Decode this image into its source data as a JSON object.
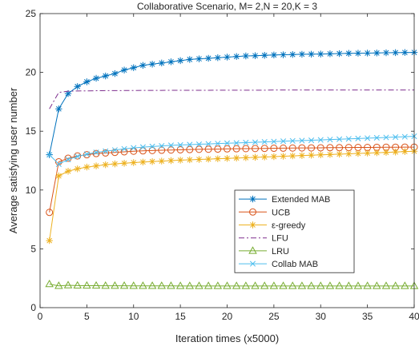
{
  "chart_data": {
    "type": "line",
    "title": "Collaborative Scenario, M= 2,N = 20,K = 3",
    "xlabel": "Iteration times (x5000)",
    "ylabel": "Average satisfying user number",
    "xlim": [
      0,
      40
    ],
    "ylim": [
      0,
      25
    ],
    "xticks": [
      0,
      5,
      10,
      15,
      20,
      25,
      30,
      35,
      40
    ],
    "yticks": [
      0,
      5,
      10,
      15,
      20,
      25
    ],
    "grid": false,
    "legend_position": "lower-right",
    "x": [
      1,
      2,
      3,
      4,
      5,
      6,
      7,
      8,
      9,
      10,
      11,
      12,
      13,
      14,
      15,
      16,
      17,
      18,
      19,
      20,
      21,
      22,
      23,
      24,
      25,
      26,
      27,
      28,
      29,
      30,
      31,
      32,
      33,
      34,
      35,
      36,
      37,
      38,
      39,
      40
    ],
    "series": [
      {
        "name": "Extended MAB",
        "color": "#0072BD",
        "marker": "star",
        "dash": "",
        "values": [
          13.0,
          16.9,
          18.2,
          18.8,
          19.2,
          19.5,
          19.7,
          19.9,
          20.2,
          20.4,
          20.6,
          20.7,
          20.8,
          20.9,
          21.0,
          21.1,
          21.15,
          21.2,
          21.25,
          21.3,
          21.35,
          21.4,
          21.42,
          21.45,
          21.48,
          21.5,
          21.52,
          21.54,
          21.55,
          21.56,
          21.58,
          21.6,
          21.62,
          21.63,
          21.64,
          21.65,
          21.67,
          21.68,
          21.69,
          21.7
        ]
      },
      {
        "name": "UCB",
        "color": "#D95319",
        "marker": "circle",
        "dash": "",
        "values": [
          8.1,
          12.4,
          12.7,
          12.9,
          13.0,
          13.1,
          13.15,
          13.2,
          13.25,
          13.3,
          13.33,
          13.36,
          13.38,
          13.4,
          13.42,
          13.44,
          13.46,
          13.47,
          13.48,
          13.5,
          13.51,
          13.52,
          13.53,
          13.54,
          13.55,
          13.56,
          13.57,
          13.58,
          13.58,
          13.59,
          13.6,
          13.6,
          13.61,
          13.62,
          13.62,
          13.63,
          13.64,
          13.64,
          13.65,
          13.65
        ]
      },
      {
        "name": "ε-greedy",
        "color": "#EDB120",
        "marker": "asterisk",
        "dash": "",
        "values": [
          5.7,
          11.2,
          11.6,
          11.8,
          11.95,
          12.05,
          12.15,
          12.22,
          12.28,
          12.33,
          12.38,
          12.42,
          12.46,
          12.5,
          12.54,
          12.57,
          12.6,
          12.63,
          12.66,
          12.69,
          12.72,
          12.75,
          12.78,
          12.81,
          12.84,
          12.87,
          12.9,
          12.93,
          12.96,
          12.99,
          13.02,
          13.05,
          13.08,
          13.11,
          13.14,
          13.17,
          13.2,
          13.23,
          13.27,
          13.3
        ]
      },
      {
        "name": "LFU",
        "color": "#7E2F8E",
        "marker": "none",
        "dash": "7,3,2,3",
        "values": [
          16.9,
          18.3,
          18.4,
          18.42,
          18.43,
          18.44,
          18.45,
          18.45,
          18.46,
          18.46,
          18.47,
          18.47,
          18.47,
          18.48,
          18.48,
          18.48,
          18.48,
          18.48,
          18.49,
          18.49,
          18.49,
          18.49,
          18.49,
          18.49,
          18.5,
          18.5,
          18.5,
          18.5,
          18.5,
          18.5,
          18.5,
          18.5,
          18.5,
          18.5,
          18.5,
          18.5,
          18.5,
          18.5,
          18.5,
          18.5
        ]
      },
      {
        "name": "LRU",
        "color": "#77AC30",
        "marker": "triangle",
        "dash": "",
        "values": [
          2.0,
          1.85,
          1.9,
          1.88,
          1.87,
          1.87,
          1.86,
          1.86,
          1.86,
          1.85,
          1.85,
          1.85,
          1.85,
          1.85,
          1.84,
          1.84,
          1.84,
          1.84,
          1.84,
          1.84,
          1.84,
          1.84,
          1.84,
          1.84,
          1.84,
          1.84,
          1.84,
          1.84,
          1.84,
          1.84,
          1.84,
          1.84,
          1.84,
          1.84,
          1.84,
          1.84,
          1.84,
          1.84,
          1.84,
          1.84
        ]
      },
      {
        "name": "Collab MAB",
        "color": "#4DBEEE",
        "marker": "x",
        "dash": "",
        "values": [
          13.0,
          12.2,
          12.6,
          12.85,
          13.05,
          13.2,
          13.3,
          13.4,
          13.5,
          13.58,
          13.65,
          13.7,
          13.75,
          13.8,
          13.83,
          13.86,
          13.89,
          13.92,
          13.95,
          13.98,
          14.0,
          14.03,
          14.06,
          14.09,
          14.12,
          14.15,
          14.18,
          14.2,
          14.23,
          14.26,
          14.29,
          14.32,
          14.35,
          14.38,
          14.41,
          14.44,
          14.47,
          14.5,
          14.53,
          14.57
        ]
      }
    ]
  }
}
